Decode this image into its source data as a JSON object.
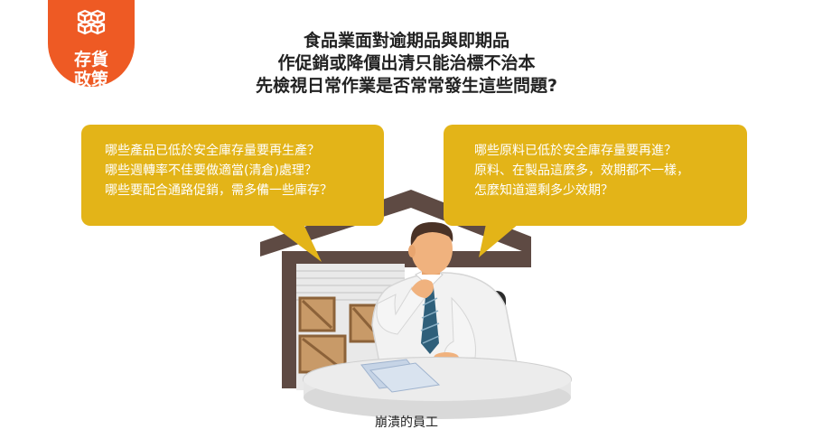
{
  "badge": {
    "icon": "boxes-icon",
    "line1": "存貨",
    "line2": "政策",
    "color": "#ee5a24"
  },
  "headline": {
    "line1": "食品業面對逾期品與即期品",
    "line2": "作促銷或降價出清只能治標不治本",
    "line3": "先檢視日常作業是否常常發生這些問題?"
  },
  "bubble_left": {
    "line1": "哪些產品已低於安全庫存量要再生產？",
    "line2": "哪些週轉率不佳要做適當(清倉)處理？",
    "line3": "哪些要配合通路促銷，需多備一些庫存？"
  },
  "bubble_right": {
    "line1": "哪些原料已低於安全庫存量要再進？",
    "line2": "原料、在製品這麼多，效期都不一樣，",
    "line3": "怎麼知道還剩多少效期？"
  },
  "caption": "崩潰的員工",
  "colors": {
    "bubble": "#e3b418",
    "warehouse": "#5e4a43",
    "crate": "#c89a68"
  }
}
